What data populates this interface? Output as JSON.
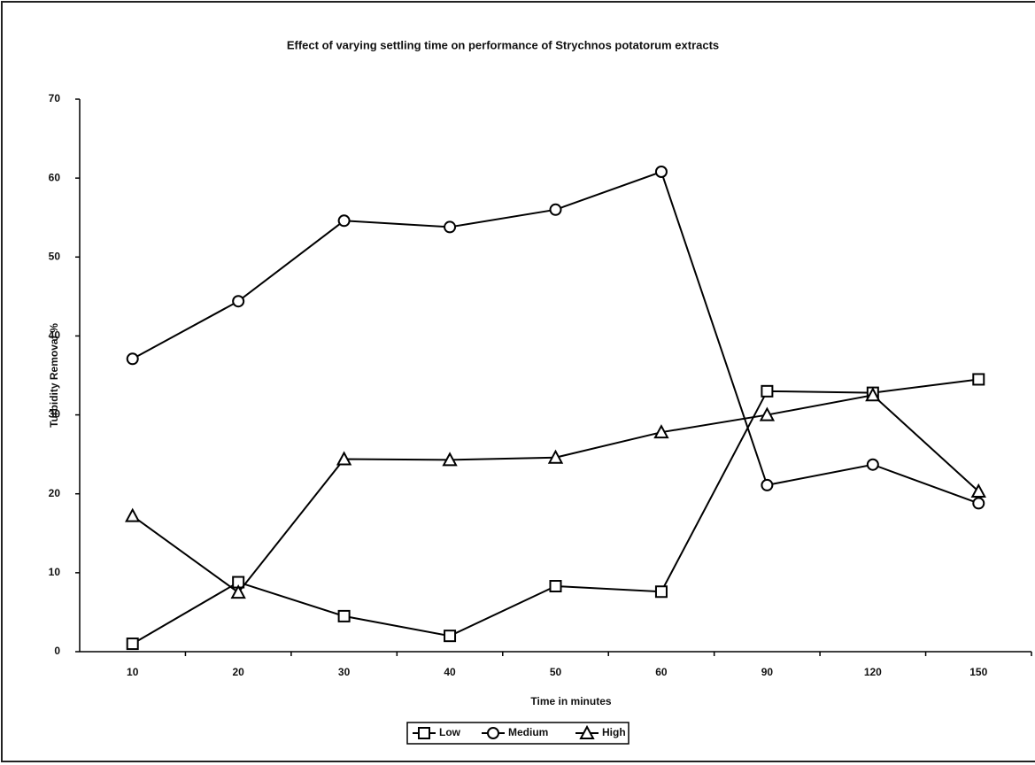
{
  "chart_data": {
    "type": "line",
    "title": "Effect of varying settling time on performance of Strychnos potatorum  extracts",
    "x_label": "Time in minutes",
    "y_label": "Turbidity Removal %",
    "categories": [
      "10",
      "20",
      "30",
      "40",
      "50",
      "60",
      "90",
      "120",
      "150"
    ],
    "series": [
      {
        "name": "Low",
        "color": "#000000",
        "marker": "square",
        "values": [
          1.0,
          8.8,
          4.5,
          2.0,
          8.3,
          7.6,
          33.0,
          32.8,
          34.5
        ]
      },
      {
        "name": "Medium",
        "color": "#000000",
        "marker": "circle",
        "values": [
          37.1,
          44.4,
          54.6,
          53.8,
          56.0,
          60.8,
          21.1,
          23.7,
          18.8
        ]
      },
      {
        "name": "High",
        "color": "#000000",
        "marker": "triangle",
        "values": [
          17.2,
          7.5,
          24.4,
          24.3,
          24.6,
          27.8,
          30.0,
          32.5,
          20.3
        ]
      }
    ],
    "ylim": [
      0,
      70
    ],
    "yticks": [
      0,
      10,
      20,
      30,
      40,
      50,
      60,
      70
    ],
    "grid": false,
    "legend": "bottom"
  }
}
